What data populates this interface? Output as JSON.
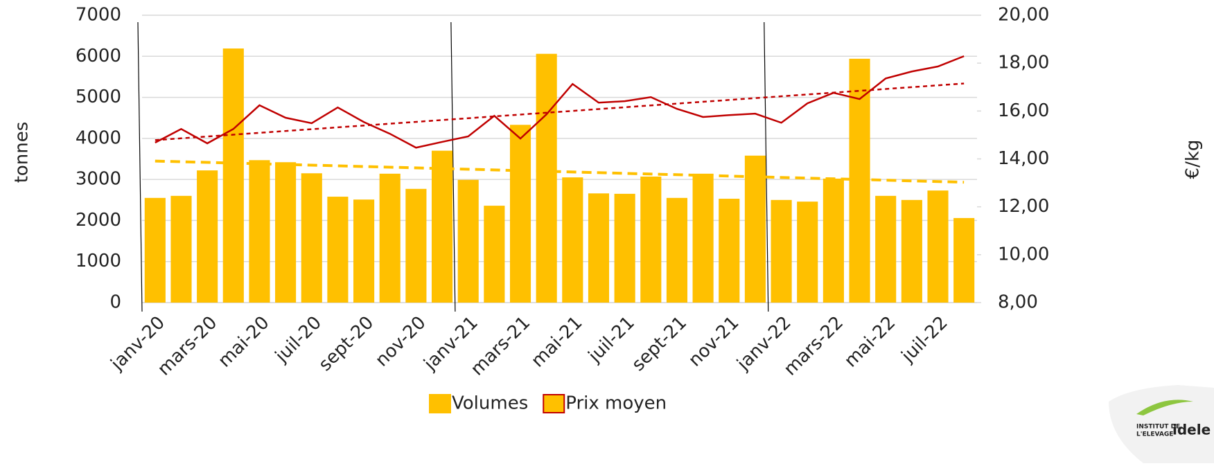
{
  "chart_data": {
    "type": "bar",
    "y_label": "tonnes",
    "y2_label": "€/kg",
    "categories": [
      "janv-20",
      null,
      "mars-20",
      null,
      "mai-20",
      null,
      "juil-20",
      null,
      "sept-20",
      null,
      "nov-20",
      null,
      "janv-21",
      null,
      "mars-21",
      null,
      "mai-21",
      null,
      "juil-21",
      null,
      "sept-21",
      null,
      "nov-21",
      null,
      "janv-22",
      null,
      "mars-22",
      null,
      "mai-22",
      null,
      "juil-22",
      null
    ],
    "series": [
      {
        "name": "Volumes",
        "type": "bar",
        "color": "#FFC000",
        "trendline": true,
        "values": [
          2550,
          2600,
          3220,
          6190,
          3470,
          3420,
          3150,
          2580,
          2510,
          3140,
          2770,
          3700,
          2990,
          2360,
          4330,
          6060,
          3050,
          2660,
          2650,
          3070,
          2550,
          3140,
          2530,
          3580,
          2500,
          2460,
          3020,
          5940,
          2600,
          2500,
          2730,
          2060
        ]
      },
      {
        "name": "Prix moyen",
        "type": "line",
        "axis": "y2",
        "color": "#C00000",
        "trendline": true,
        "values": [
          14.68,
          15.25,
          14.65,
          15.25,
          16.24,
          15.72,
          15.49,
          16.15,
          15.54,
          15.05,
          14.47,
          14.71,
          14.94,
          15.8,
          14.85,
          15.86,
          17.13,
          16.35,
          16.41,
          16.58,
          16.09,
          15.75,
          15.83,
          15.89,
          15.51,
          16.32,
          16.76,
          16.5,
          17.36,
          17.65,
          17.86,
          18.29
        ]
      }
    ],
    "ylim": [
      0,
      7000
    ],
    "yticks": [
      0,
      1000,
      2000,
      3000,
      4000,
      5000,
      6000,
      7000
    ],
    "y2lim": [
      8,
      20
    ],
    "y2ticks": [
      {
        "value": 8,
        "label": "8,00"
      },
      {
        "value": 10,
        "label": "10,00"
      },
      {
        "value": 12,
        "label": "12,00"
      },
      {
        "value": 14,
        "label": "14,00"
      },
      {
        "value": 16,
        "label": "16,00"
      },
      {
        "value": 18,
        "label": "18,00"
      },
      {
        "value": 20,
        "label": "20,00"
      }
    ],
    "grid": true,
    "legend": "bottom"
  },
  "logo": {
    "line1": "INSTITUT DE",
    "line2": "L'ELEVAGE",
    "brand": "idele"
  }
}
